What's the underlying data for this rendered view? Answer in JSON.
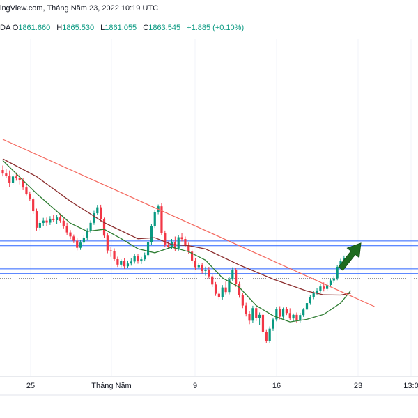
{
  "header": {
    "source_line": "ingView.com, Tháng Năm 23, 2022 10:19 UTC",
    "symbol_tail": "DA",
    "ohlc": [
      {
        "label": "O",
        "value": "1861.660"
      },
      {
        "label": "H",
        "value": "1865.530"
      },
      {
        "label": "L",
        "value": "1861.055"
      },
      {
        "label": "C",
        "value": "1863.545"
      }
    ],
    "change": "+1.885 (+0.10%)"
  },
  "colors": {
    "bull": "#089981",
    "bear": "#f23645",
    "trendline": "#f4685e",
    "sma_fast": "#2e7d32",
    "sma_slow": "#8b2d2d",
    "hlines": "#2962ff",
    "arrow": "#1e6b1e",
    "axis_text": "#131722",
    "grid": "#f0f3fa"
  },
  "chart_data": {
    "type": "candlestick",
    "x_tick_labels": [
      "25",
      "Tháng Năm",
      "9",
      "16",
      "23",
      "13:0"
    ],
    "candles": [
      [
        1913.5,
        1917.6,
        1907.8,
        1910.3
      ],
      [
        1910.3,
        1914.5,
        1906.6,
        1908.4
      ],
      [
        1908.4,
        1913.1,
        1898.2,
        1902.2
      ],
      [
        1902.2,
        1910.1,
        1900.0,
        1907.7
      ],
      [
        1907.7,
        1911.2,
        1903.9,
        1906.5
      ],
      [
        1906.5,
        1909.7,
        1900.6,
        1904.6
      ],
      [
        1904.6,
        1906.2,
        1895.4,
        1897.8
      ],
      [
        1897.8,
        1899.9,
        1890.7,
        1892.2
      ],
      [
        1892.2,
        1894.2,
        1885.4,
        1887.2
      ],
      [
        1887.2,
        1888.9,
        1874.2,
        1876.6
      ],
      [
        1876.6,
        1878.8,
        1859.2,
        1861.7
      ],
      [
        1861.7,
        1868.1,
        1859.5,
        1866.0
      ],
      [
        1866.0,
        1870.6,
        1863.1,
        1868.1
      ],
      [
        1868.1,
        1870.8,
        1863.0,
        1866.3
      ],
      [
        1866.3,
        1872.1,
        1864.2,
        1869.8
      ],
      [
        1869.8,
        1873.0,
        1866.6,
        1868.5
      ],
      [
        1868.5,
        1873.1,
        1865.2,
        1870.9
      ],
      [
        1870.9,
        1874.4,
        1866.1,
        1868.0
      ],
      [
        1868.0,
        1870.3,
        1861.1,
        1863.0
      ],
      [
        1863.0,
        1866.1,
        1855.4,
        1857.5
      ],
      [
        1857.5,
        1859.6,
        1851.5,
        1853.9
      ],
      [
        1853.9,
        1855.6,
        1848.0,
        1850.1
      ],
      [
        1850.1,
        1852.3,
        1841.4,
        1843.7
      ],
      [
        1843.7,
        1850.8,
        1841.8,
        1848.4
      ],
      [
        1848.4,
        1855.2,
        1846.1,
        1852.9
      ],
      [
        1852.9,
        1861.4,
        1850.3,
        1859.2
      ],
      [
        1859.2,
        1868.3,
        1856.6,
        1866.1
      ],
      [
        1866.1,
        1876.9,
        1864.3,
        1874.7
      ],
      [
        1874.7,
        1882.2,
        1873.1,
        1880.0
      ],
      [
        1880.0,
        1882.3,
        1867.3,
        1869.1
      ],
      [
        1869.1,
        1870.8,
        1852.4,
        1854.6
      ],
      [
        1854.6,
        1856.9,
        1838.8,
        1841.3
      ],
      [
        1841.3,
        1844.3,
        1835.6,
        1840.8
      ],
      [
        1840.8,
        1843.2,
        1831.6,
        1833.5
      ],
      [
        1833.5,
        1835.7,
        1826.5,
        1828.6
      ],
      [
        1828.6,
        1833.4,
        1826.3,
        1831.7
      ],
      [
        1831.7,
        1834.5,
        1824.7,
        1827.1
      ],
      [
        1827.1,
        1832.3,
        1825.5,
        1829.6
      ],
      [
        1829.6,
        1834.1,
        1827.7,
        1831.4
      ],
      [
        1831.4,
        1838.4,
        1829.5,
        1836.3
      ],
      [
        1836.3,
        1838.5,
        1829.4,
        1831.6
      ],
      [
        1831.6,
        1835.5,
        1829.2,
        1833.4
      ],
      [
        1833.4,
        1839.4,
        1831.6,
        1837.1
      ],
      [
        1837.1,
        1850.4,
        1835.3,
        1848.6
      ],
      [
        1848.6,
        1865.3,
        1846.6,
        1863.3
      ],
      [
        1863.3,
        1877.5,
        1861.5,
        1875.7
      ],
      [
        1875.7,
        1882.5,
        1873.8,
        1880.9
      ],
      [
        1880.9,
        1883.6,
        1855.0,
        1857.1
      ],
      [
        1857.1,
        1859.2,
        1844.1,
        1846.7
      ],
      [
        1846.7,
        1849.3,
        1842.4,
        1844.2
      ],
      [
        1844.2,
        1851.6,
        1842.3,
        1849.0
      ],
      [
        1849.0,
        1853.8,
        1840.5,
        1843.0
      ],
      [
        1843.0,
        1855.3,
        1841.1,
        1853.2
      ],
      [
        1853.2,
        1857.0,
        1849.4,
        1851.6
      ],
      [
        1851.6,
        1853.8,
        1844.5,
        1846.4
      ],
      [
        1846.4,
        1848.3,
        1838.2,
        1840.2
      ],
      [
        1840.2,
        1842.1,
        1829.5,
        1832.3
      ],
      [
        1832.3,
        1834.4,
        1823.8,
        1826.3
      ],
      [
        1826.3,
        1830.1,
        1824.8,
        1828.0
      ],
      [
        1828.0,
        1830.3,
        1820.6,
        1822.9
      ],
      [
        1822.9,
        1826.8,
        1818.7,
        1823.7
      ],
      [
        1823.7,
        1826.6,
        1816.3,
        1818.1
      ],
      [
        1818.1,
        1820.4,
        1808.5,
        1810.8
      ],
      [
        1810.8,
        1813.0,
        1800.6,
        1802.5
      ],
      [
        1802.5,
        1804.6,
        1797.4,
        1799.7
      ],
      [
        1799.7,
        1810.3,
        1797.3,
        1808.1
      ],
      [
        1808.1,
        1813.4,
        1801.9,
        1804.0
      ],
      [
        1804.0,
        1817.6,
        1801.9,
        1815.3
      ],
      [
        1815.3,
        1826.2,
        1813.5,
        1823.8
      ],
      [
        1823.8,
        1825.6,
        1808.7,
        1811.0
      ],
      [
        1811.0,
        1813.2,
        1798.9,
        1801.2
      ],
      [
        1801.2,
        1803.3,
        1789.6,
        1791.9
      ],
      [
        1791.9,
        1794.4,
        1782.1,
        1784.6
      ],
      [
        1784.6,
        1786.9,
        1775.2,
        1778.3
      ],
      [
        1778.3,
        1791.7,
        1776.0,
        1789.6
      ],
      [
        1789.6,
        1791.4,
        1778.0,
        1780.5
      ],
      [
        1780.5,
        1785.7,
        1774.4,
        1783.6
      ],
      [
        1783.6,
        1785.4,
        1766.2,
        1768.5
      ],
      [
        1768.5,
        1770.6,
        1758.3,
        1760.2
      ],
      [
        1760.2,
        1773.2,
        1758.5,
        1771.2
      ],
      [
        1771.2,
        1781.1,
        1769.2,
        1779.5
      ],
      [
        1779.5,
        1790.9,
        1777.7,
        1789.1
      ],
      [
        1789.1,
        1791.3,
        1779.5,
        1781.9
      ],
      [
        1781.9,
        1790.1,
        1779.9,
        1788.6
      ],
      [
        1788.6,
        1790.4,
        1783.4,
        1785.2
      ],
      [
        1785.2,
        1789.5,
        1778.6,
        1780.3
      ],
      [
        1780.3,
        1784.9,
        1777.6,
        1783.6
      ],
      [
        1783.6,
        1785.7,
        1776.6,
        1778.6
      ],
      [
        1778.6,
        1785.4,
        1776.7,
        1783.4
      ],
      [
        1783.4,
        1789.6,
        1781.7,
        1788.3
      ],
      [
        1788.3,
        1796.4,
        1786.5,
        1794.1
      ],
      [
        1794.1,
        1801.3,
        1792.5,
        1799.5
      ],
      [
        1799.5,
        1805.2,
        1797.6,
        1803.5
      ],
      [
        1803.5,
        1807.4,
        1801.4,
        1805.4
      ],
      [
        1805.4,
        1811.2,
        1803.6,
        1809.0
      ],
      [
        1809.0,
        1812.7,
        1804.6,
        1806.8
      ],
      [
        1806.8,
        1812.5,
        1805.0,
        1810.4
      ],
      [
        1810.4,
        1816.4,
        1808.7,
        1814.4
      ],
      [
        1814.4,
        1818.4,
        1812.3,
        1816.3
      ],
      [
        1816.3,
        1828.5,
        1814.6,
        1826.6
      ],
      [
        1826.6,
        1833.8,
        1825.1,
        1832.1
      ],
      [
        1832.1,
        1836.7,
        1830.2,
        1834.5
      ]
    ],
    "sma_fast": [
      [
        0,
        1922.0
      ],
      [
        10,
        1892.3
      ],
      [
        20,
        1865.8
      ],
      [
        25,
        1858.5
      ],
      [
        30,
        1860.3
      ],
      [
        35,
        1852.0
      ],
      [
        40,
        1842.8
      ],
      [
        45,
        1839.2
      ],
      [
        50,
        1844.3
      ],
      [
        55,
        1840.2
      ],
      [
        60,
        1832.6
      ],
      [
        65,
        1816.6
      ],
      [
        70,
        1808.3
      ],
      [
        75,
        1791.9
      ],
      [
        80,
        1782.8
      ],
      [
        85,
        1777.2
      ],
      [
        90,
        1779.5
      ],
      [
        95,
        1784.0
      ],
      [
        100,
        1794.1
      ],
      [
        103,
        1805.4
      ]
    ],
    "sma_slow": [
      [
        0,
        1923.5
      ],
      [
        10,
        1907.6
      ],
      [
        20,
        1885.5
      ],
      [
        30,
        1866.3
      ],
      [
        40,
        1851.8
      ],
      [
        45,
        1852.8
      ],
      [
        50,
        1846.6
      ],
      [
        55,
        1845.6
      ],
      [
        60,
        1842.6
      ],
      [
        70,
        1828.3
      ],
      [
        80,
        1815.6
      ],
      [
        90,
        1804.9
      ],
      [
        95,
        1801.5
      ],
      [
        100,
        1801.3
      ],
      [
        103,
        1803.0
      ]
    ],
    "trendline": {
      "from": [
        0,
        1941.0
      ],
      "to": [
        110,
        1791.0
      ]
    },
    "horizontal_levels": [
      1849.8,
      1845.5,
      1824.8,
      1820.5
    ],
    "dotted_level": 1816.1,
    "projection_arrow": {
      "from": [
        100,
        1825.0
      ],
      "to": [
        106,
        1848.0
      ]
    }
  }
}
